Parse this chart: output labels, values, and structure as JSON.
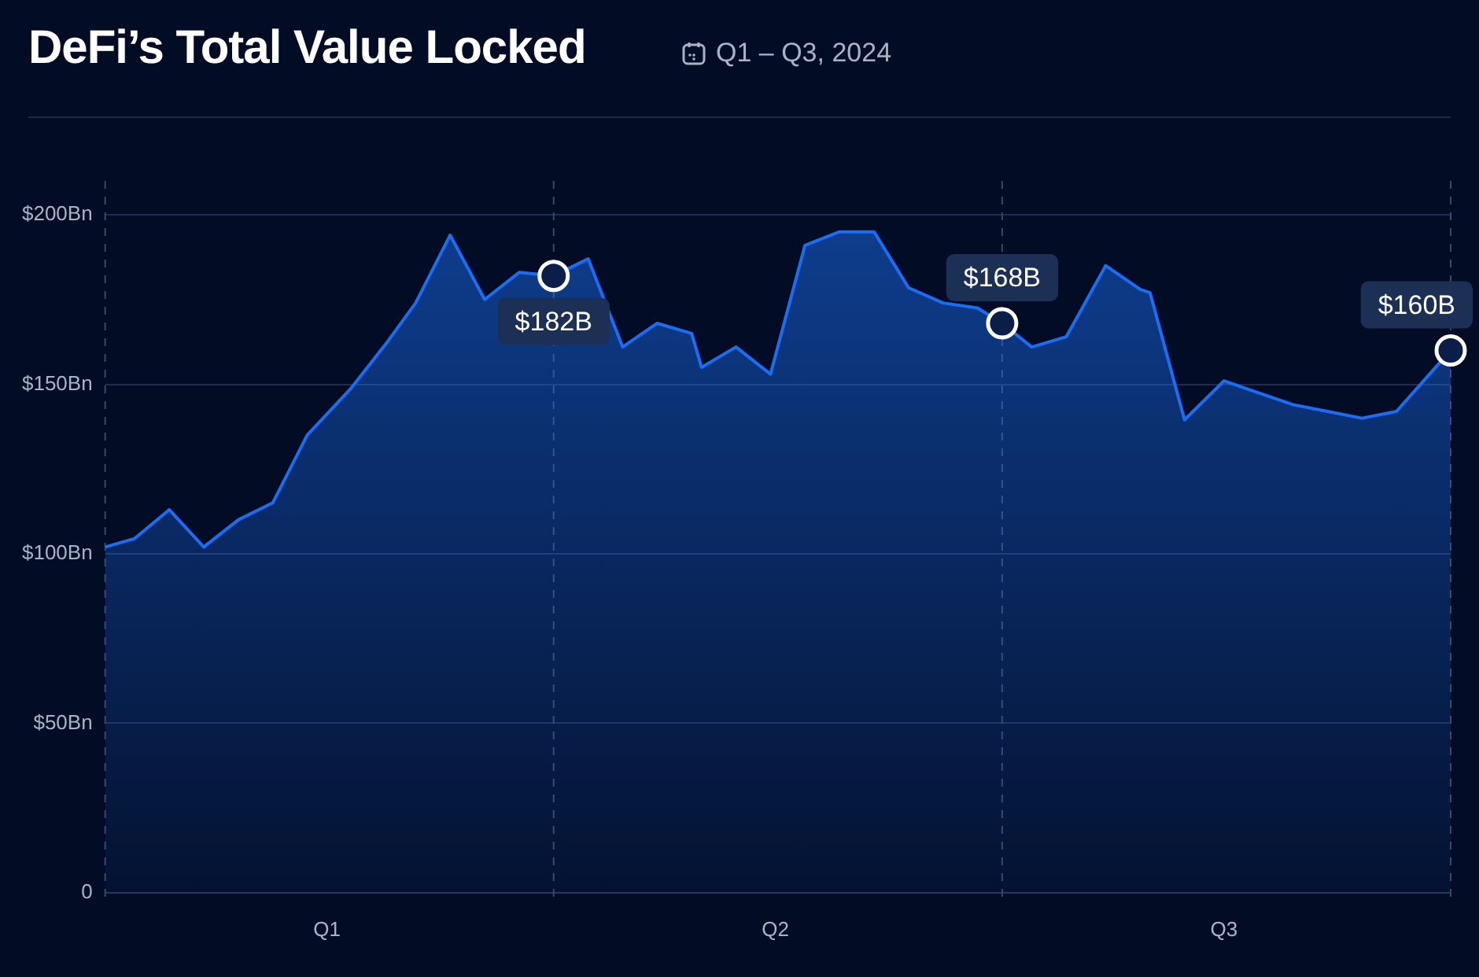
{
  "chart_data": {
    "type": "area",
    "title": "DeFi’s Total Value Locked",
    "subtitle": "Q1 – Q3, 2024",
    "x": [
      "2024-01-01",
      "2024-01-07",
      "2024-01-14",
      "2024-01-21",
      "2024-01-28",
      "2024-02-04",
      "2024-02-11",
      "2024-02-20",
      "2024-02-27",
      "2024-03-04",
      "2024-03-11",
      "2024-03-18",
      "2024-03-25",
      "2024-04-01",
      "2024-04-08",
      "2024-04-15",
      "2024-04-22",
      "2024-04-29",
      "2024-05-01",
      "2024-05-08",
      "2024-05-15",
      "2024-05-22",
      "2024-05-29",
      "2024-06-05",
      "2024-06-12",
      "2024-06-19",
      "2024-06-26",
      "2024-07-01",
      "2024-07-07",
      "2024-07-14",
      "2024-07-22",
      "2024-07-29",
      "2024-07-31",
      "2024-08-07",
      "2024-08-15",
      "2024-08-22",
      "2024-08-29",
      "2024-09-05",
      "2024-09-12",
      "2024-09-19",
      "2024-09-30"
    ],
    "series": [
      {
        "color": "#1a6ef5",
        "values": [
          102,
          104.5,
          113,
          102,
          110,
          115,
          135,
          149,
          162,
          174,
          194,
          175,
          183,
          182,
          187,
          161,
          168,
          165,
          155,
          161,
          153,
          191,
          195,
          195,
          178.5,
          174,
          172.5,
          168,
          161,
          164,
          185,
          178,
          177,
          139.5,
          151,
          147.5,
          144,
          142,
          140,
          142,
          160
        ]
      }
    ],
    "xlim": [
      "2024-01-01",
      "2024-09-30"
    ],
    "xticks": [
      {
        "value": "2024-02-15",
        "label": "Q1"
      },
      {
        "value": "2024-05-16",
        "label": "Q2"
      },
      {
        "value": "2024-08-15",
        "label": "Q3"
      }
    ],
    "ylim": [
      0,
      210
    ],
    "yticks": [
      0,
      {
        "value": 50,
        "label": "$50Bn"
      },
      {
        "value": 100,
        "label": "$100Bn"
      },
      {
        "value": 150,
        "label": "$150Bn"
      },
      {
        "value": 200,
        "label": "$200Bn"
      }
    ],
    "grid": "y",
    "legend": false,
    "marker": "none",
    "line_style": "solid",
    "ref_lines": [
      {
        "axis": "x",
        "value": "2024-01-01",
        "line_style": "dashed"
      },
      {
        "axis": "x",
        "value": "2024-04-01",
        "line_style": "dashed"
      },
      {
        "axis": "x",
        "value": "2024-07-01",
        "line_style": "dashed"
      },
      {
        "axis": "x",
        "value": "2024-09-30",
        "line_style": "dashed"
      }
    ],
    "annotations": [
      {
        "text": "$182B",
        "x": "2024-04-01",
        "y": 182
      },
      {
        "text": "$168B",
        "x": "2024-07-01",
        "y": 168
      },
      {
        "text": "$160B",
        "x": "2024-09-30",
        "y": 160
      }
    ]
  }
}
